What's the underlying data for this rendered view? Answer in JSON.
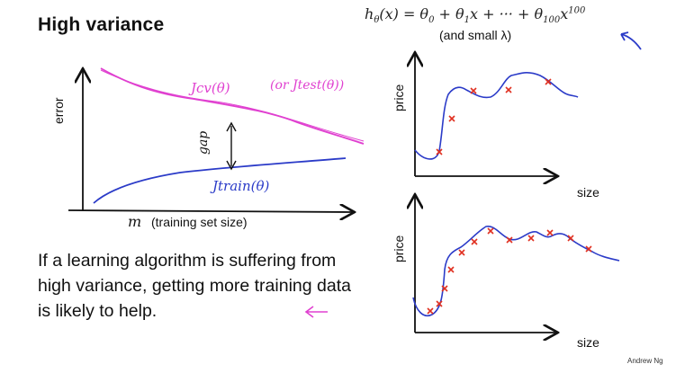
{
  "slide": {
    "title": "High variance",
    "formula": {
      "lhs": "hθ(x) = θ0 + θ1x + ··· + θ100x100",
      "note": "(and small λ)"
    },
    "body_text": "If a learning algorithm is suffering from high variance, getting more training data is likely to help.",
    "credit": "Andrew Ng"
  },
  "learning_curve": {
    "ylabel": "error",
    "xlabel_symbol": "m",
    "xlabel": "(training set size)",
    "cv_label": "Jcv(θ)",
    "test_label": "(or Jtest(θ))",
    "train_label": "Jtrain(θ)",
    "gap_label": "gap",
    "colors": {
      "cv": "#e040d0",
      "train": "#2b3bc8"
    }
  },
  "plot_top": {
    "ylabel": "price",
    "xlabel": "size"
  },
  "plot_bottom": {
    "ylabel": "price",
    "xlabel": "size"
  },
  "colors": {
    "fit": "#2b3bc8",
    "points": "#e03020",
    "axis": "#111111"
  }
}
